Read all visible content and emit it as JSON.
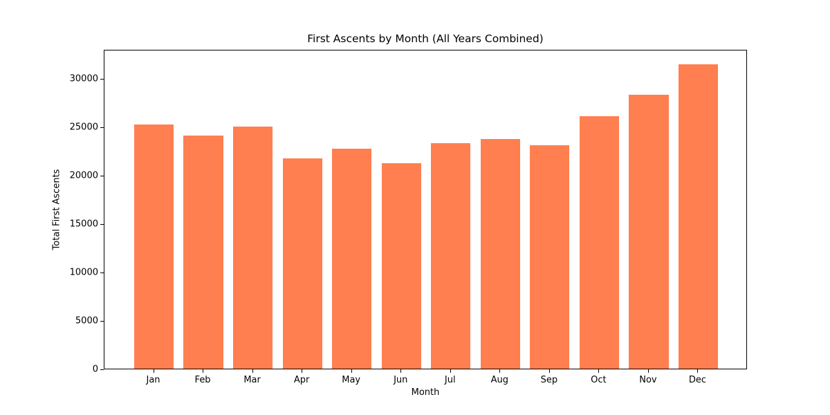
{
  "chart_data": {
    "type": "bar",
    "title": "First Ascents by Month (All Years Combined)",
    "xlabel": "Month",
    "ylabel": "Total First Ascents",
    "categories": [
      "Jan",
      "Feb",
      "Mar",
      "Apr",
      "May",
      "Jun",
      "Jul",
      "Aug",
      "Sep",
      "Oct",
      "Nov",
      "Dec"
    ],
    "values": [
      25250,
      24050,
      25000,
      21700,
      22750,
      21250,
      23300,
      23750,
      23100,
      26050,
      28300,
      31400
    ],
    "ylim": [
      0,
      33000
    ],
    "yticks": [
      0,
      5000,
      10000,
      15000,
      20000,
      25000,
      30000
    ],
    "bar_color": "#FF7F50",
    "axis_color": "#000000",
    "background_color": "#ffffff",
    "grid": false,
    "legend_position": "none"
  }
}
